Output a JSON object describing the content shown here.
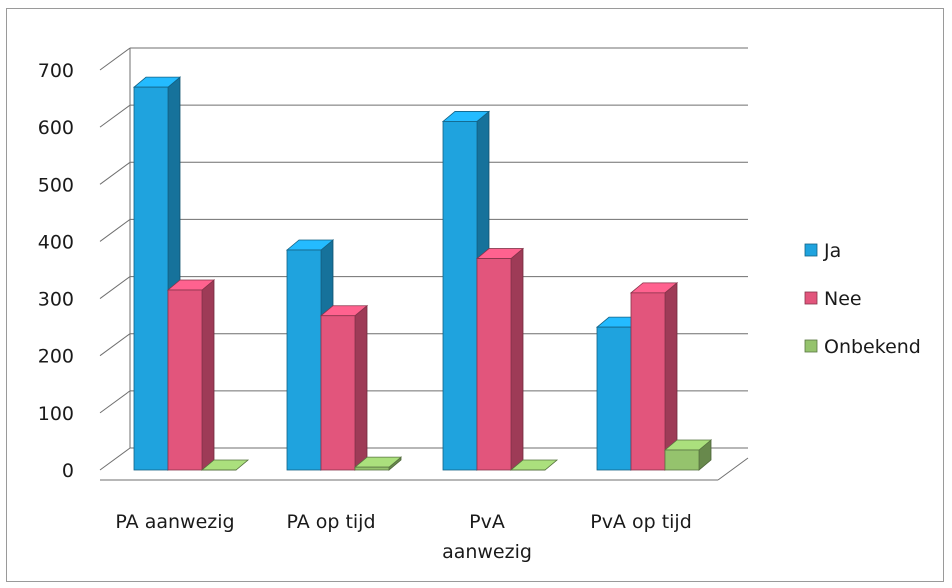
{
  "chart_data": {
    "type": "bar",
    "style": "3d-clustered-column",
    "categories": [
      "PA aanwezig",
      "PA op tijd",
      "PvA aanwezig",
      "PvA op tijd"
    ],
    "series": [
      {
        "name": "Ja",
        "color": "#1fa3de",
        "values": [
          670,
          385,
          610,
          250
        ]
      },
      {
        "name": "Nee",
        "color": "#e2557c",
        "values": [
          315,
          270,
          370,
          310
        ]
      },
      {
        "name": "Onbekend",
        "color": "#95c36d",
        "values": [
          0,
          5,
          0,
          35
        ]
      }
    ],
    "ylim": [
      0,
      700
    ],
    "yticks": [
      0,
      100,
      200,
      300,
      400,
      500,
      600,
      700
    ],
    "grid": true,
    "legend": "right",
    "title": "",
    "xlabel": "",
    "ylabel": ""
  }
}
